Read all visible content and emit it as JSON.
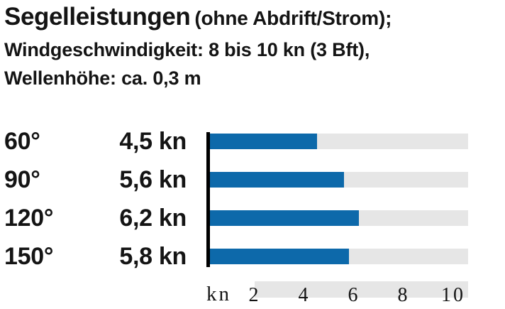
{
  "header": {
    "title": "Segelleistungen",
    "title_suffix": "(ohne Abdrift/Strom);",
    "line2": "Windgeschwindigkeit: 8 bis 10 kn (3 Bft),",
    "line3": "Wellenhöhe: ca. 0,3 m"
  },
  "chart_data": {
    "type": "bar",
    "orientation": "horizontal",
    "title": "Segelleistungen (ohne Abdrift/Strom); Windgeschwindigkeit: 8 bis 10 kn (3 Bft), Wellenhöhe: ca. 0,3 m",
    "categories": [
      "60°",
      "90°",
      "120°",
      "150°"
    ],
    "values": [
      4.5,
      5.6,
      6.2,
      5.8
    ],
    "value_labels": [
      "4,5 kn",
      "5,6 kn",
      "6,2 kn",
      "5,8 kn"
    ],
    "unit": "kn",
    "axis_unit_label": "kn",
    "x_ticks": [
      2,
      4,
      6,
      8,
      10
    ],
    "xlim": [
      0,
      10.6
    ],
    "grid": false,
    "legend": false,
    "bar_color": "#0d69aa",
    "track_color": "#e6e6e6",
    "axis_line_color": "#000000"
  }
}
